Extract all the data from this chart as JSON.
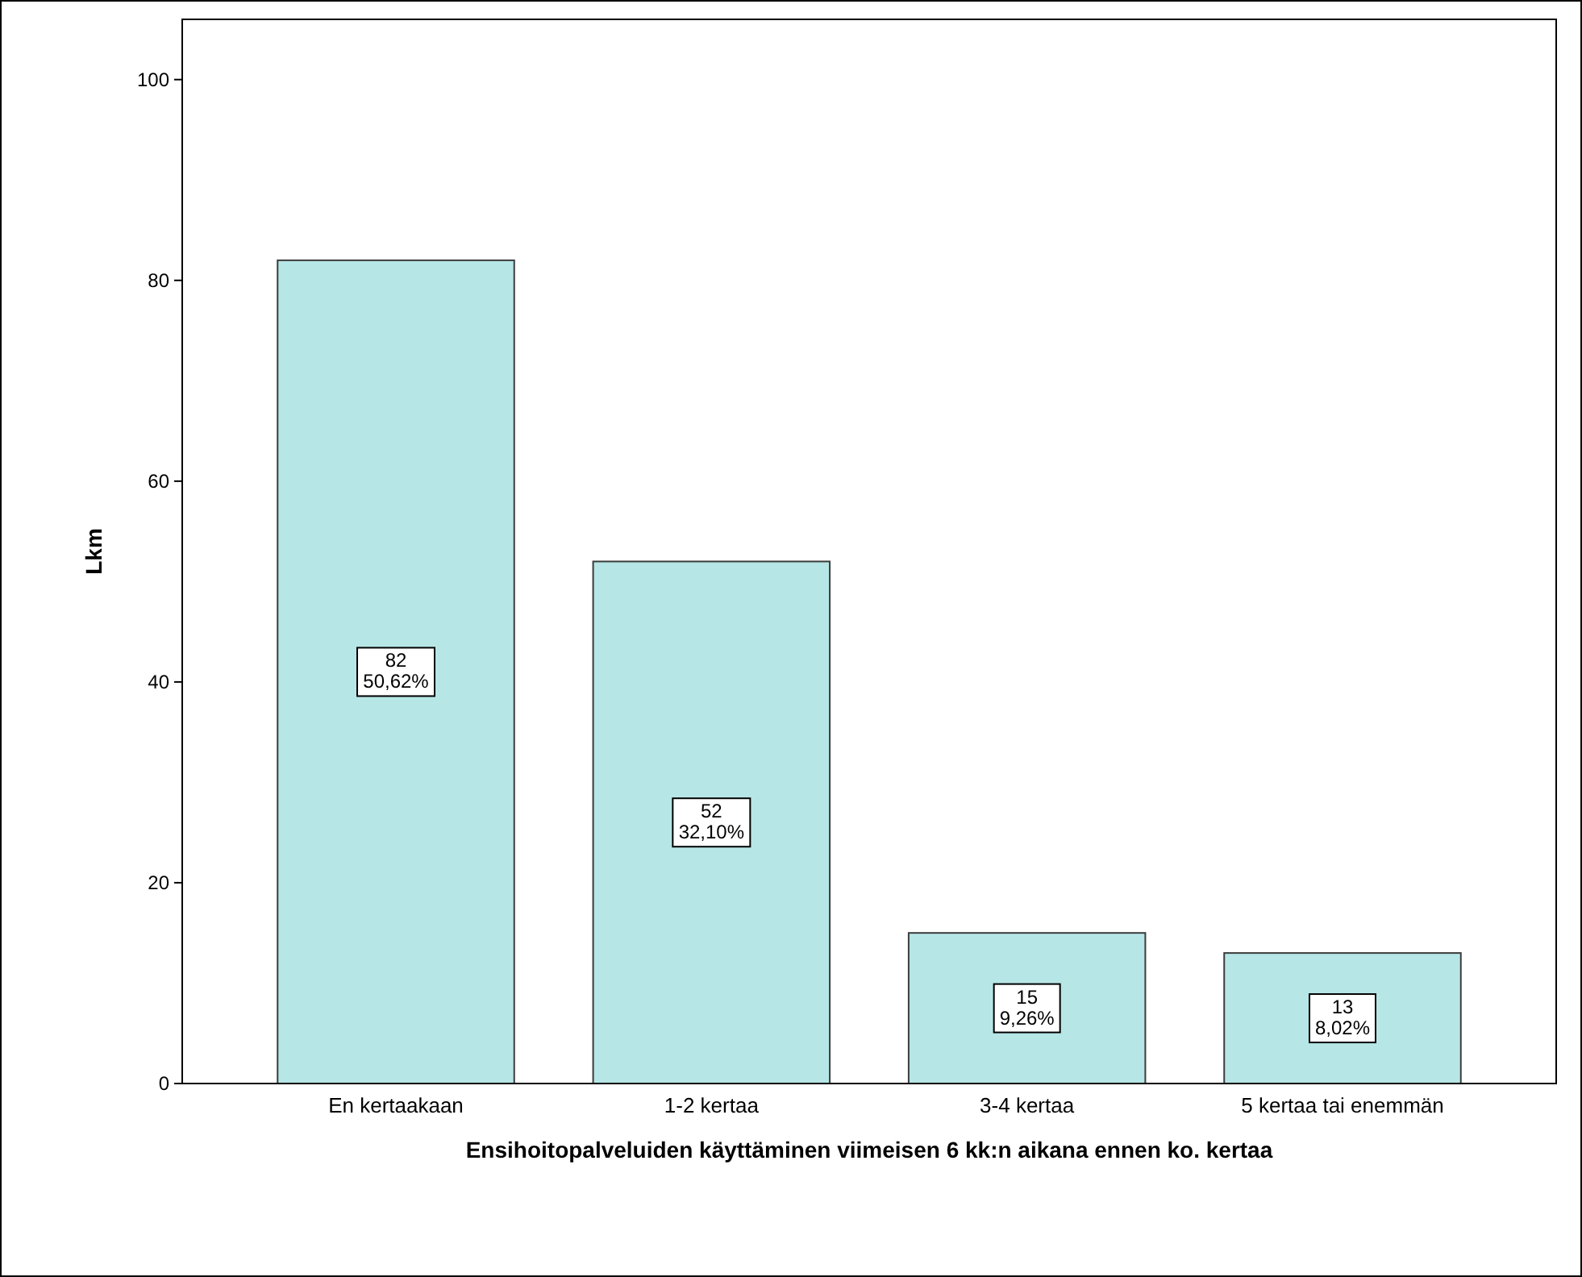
{
  "chart_data": {
    "type": "bar",
    "xlabel": "Ensihoitopalveluiden käyttäminen viimeisen 6 kk:n aikana ennen ko. kertaa",
    "ylabel": "Lkm",
    "categories": [
      "En kertaakaan",
      "1-2 kertaa",
      "3-4 kertaa",
      "5 kertaa tai enemmän"
    ],
    "values": [
      82,
      52,
      15,
      13
    ],
    "value_labels": [
      "82\n50,62%",
      "52\n32,10%",
      "15\n9,26%",
      "13\n8,02%"
    ],
    "color": "#b7e6e6",
    "ylim": [
      0,
      106
    ],
    "yticks": [
      0,
      20,
      40,
      60,
      80,
      100
    ],
    "grid": false
  }
}
